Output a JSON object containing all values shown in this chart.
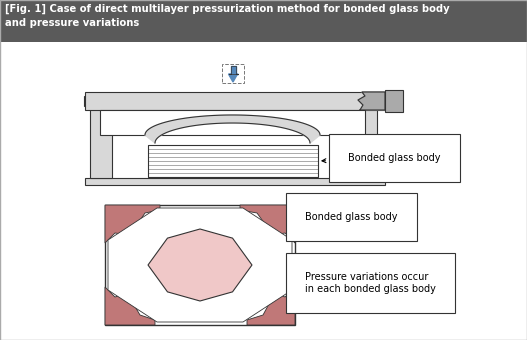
{
  "title": "[Fig. 1] Case of direct multilayer pressurization method for bonded glass body\nand pressure variations",
  "title_bg": "#5a5a5a",
  "title_color": "#ffffff",
  "bg_color": "#ffffff",
  "border_color": "#333333",
  "label1": "Bonded glass body",
  "label2": "Bonded glass body",
  "label3": "Pressure variations occur\nin each bonded glass body",
  "pink_dark": "#c07878",
  "pink_light": "#f0c8c8",
  "gray_light": "#d8d8d8",
  "gray_mid": "#aaaaaa",
  "gray_dark": "#888888",
  "blue_arrow": "#5588bb",
  "fig_width": 5.27,
  "fig_height": 3.4,
  "dpi": 100
}
